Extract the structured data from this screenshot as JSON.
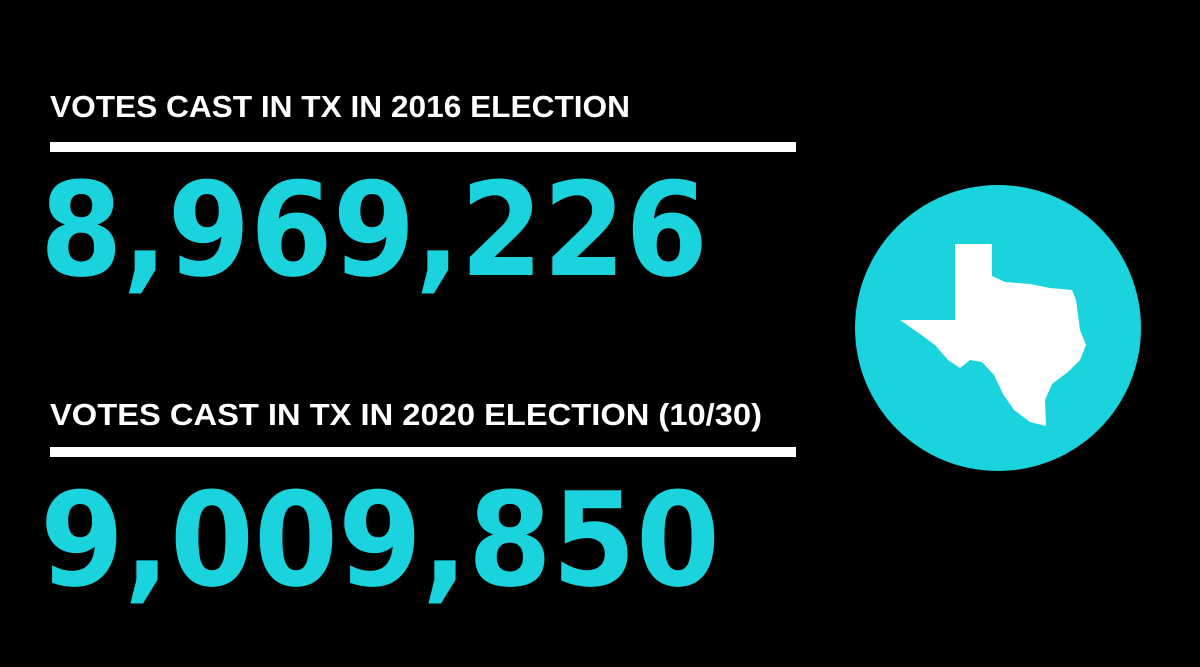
{
  "stats": [
    {
      "label": "VOTES CAST IN TX IN 2016 ELECTION",
      "value": "8,969,226"
    },
    {
      "label": "VOTES CAST IN TX IN 2020 ELECTION (10/30)",
      "value": "9,009,850"
    }
  ]
}
